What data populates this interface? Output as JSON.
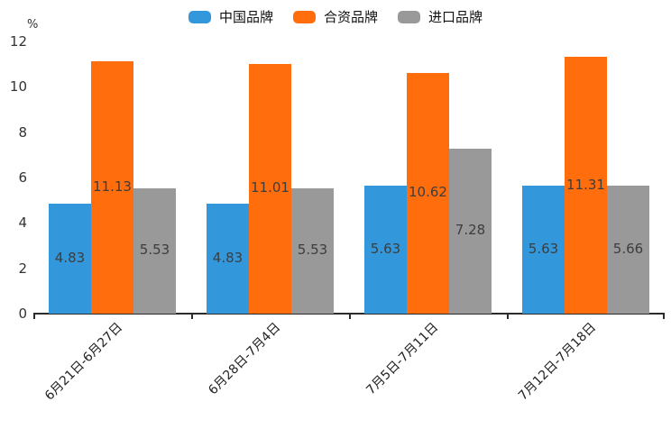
{
  "chart_data": {
    "type": "bar",
    "title": "",
    "unit_label": "%",
    "categories": [
      "6月21日-6月27日",
      "6月28日-7月4日",
      "7月5日-7月11日",
      "7月12日-7月18日"
    ],
    "series": [
      {
        "name": "中国品牌",
        "color": "#3398db",
        "values": [
          4.83,
          4.83,
          5.63,
          5.63
        ]
      },
      {
        "name": "合资品牌",
        "color": "#ff6d0d",
        "values": [
          11.13,
          11.01,
          10.62,
          11.31
        ]
      },
      {
        "name": "进口品牌",
        "color": "#999999",
        "values": [
          5.53,
          5.53,
          7.28,
          5.66
        ]
      }
    ],
    "ylim": [
      0,
      12
    ],
    "yticks": [
      0,
      2,
      4,
      6,
      8,
      10,
      12
    ],
    "grid": false,
    "legend_position": "top",
    "value_labels": "centered-inside-bars",
    "axis_color": "#2b2b2b"
  }
}
